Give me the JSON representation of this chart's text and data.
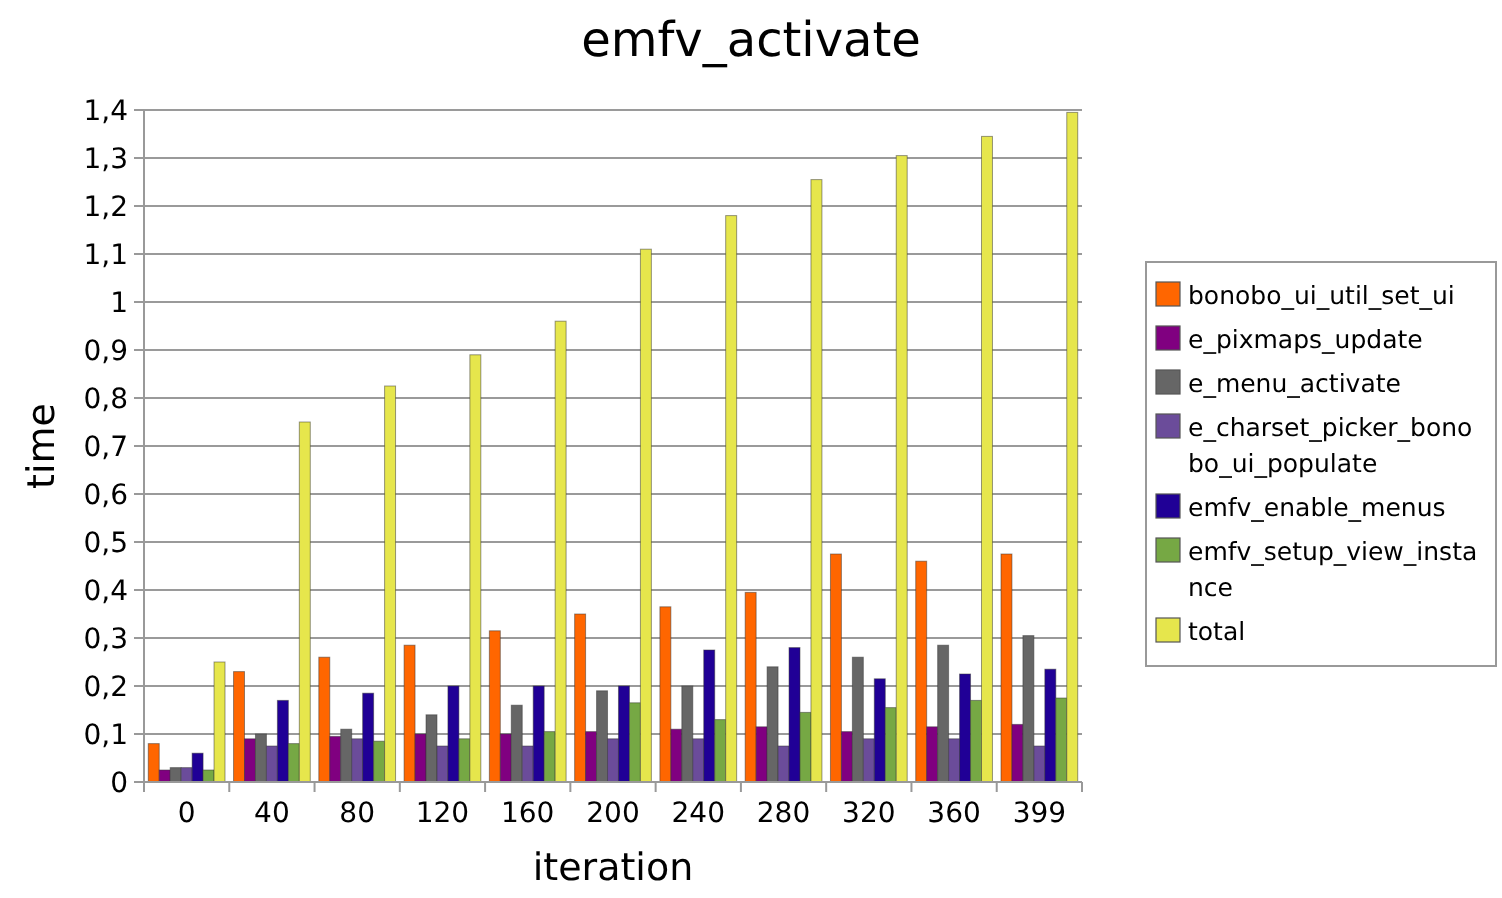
{
  "chart_data": {
    "type": "bar",
    "title": "emfv_activate",
    "xlabel": "iteration",
    "ylabel": "time",
    "categories": [
      "0",
      "40",
      "80",
      "120",
      "160",
      "200",
      "240",
      "280",
      "320",
      "360",
      "399"
    ],
    "series": [
      {
        "name": "bonobo_ui_util_set_ui",
        "color": "#ff6600",
        "values": [
          0.08,
          0.23,
          0.26,
          0.285,
          0.315,
          0.35,
          0.365,
          0.395,
          0.475,
          0.46,
          0.475
        ]
      },
      {
        "name": "e_pixmaps_update",
        "color": "#800080",
        "values": [
          0.025,
          0.09,
          0.095,
          0.1,
          0.1,
          0.105,
          0.11,
          0.115,
          0.105,
          0.115,
          0.12
        ]
      },
      {
        "name": "e_menu_activate",
        "color": "#666666",
        "values": [
          0.03,
          0.1,
          0.11,
          0.14,
          0.16,
          0.19,
          0.2,
          0.24,
          0.26,
          0.285,
          0.305
        ]
      },
      {
        "name": "e_charset_picker_bonobo_ui_populate",
        "color": "#6b4c9a",
        "values": [
          0.03,
          0.075,
          0.09,
          0.075,
          0.075,
          0.09,
          0.09,
          0.075,
          0.09,
          0.09,
          0.075
        ]
      },
      {
        "name": "emfv_enable_menus",
        "color": "#200096",
        "values": [
          0.06,
          0.17,
          0.185,
          0.2,
          0.2,
          0.2,
          0.275,
          0.28,
          0.215,
          0.225,
          0.235
        ]
      },
      {
        "name": "emfv_setup_view_instance",
        "color": "#76a844",
        "values": [
          0.025,
          0.08,
          0.085,
          0.09,
          0.105,
          0.165,
          0.13,
          0.145,
          0.155,
          0.17,
          0.175
        ]
      },
      {
        "name": "total",
        "color": "#e6e64c",
        "values": [
          0.25,
          0.75,
          0.825,
          0.89,
          0.96,
          1.11,
          1.18,
          1.255,
          1.305,
          1.345,
          1.395
        ]
      }
    ],
    "ylim": [
      0,
      1.4
    ],
    "yticks": [
      0,
      {
        "value": 0.1,
        "label": "0,1"
      },
      {
        "value": 0.2,
        "label": "0,2"
      },
      {
        "value": 0.3,
        "label": "0,3"
      },
      {
        "value": 0.4,
        "label": "0,4"
      },
      {
        "value": 0.5,
        "label": "0,5"
      },
      {
        "value": 0.6,
        "label": "0,6"
      },
      {
        "value": 0.7,
        "label": "0,7"
      },
      {
        "value": 0.8,
        "label": "0,8"
      },
      {
        "value": 0.9,
        "label": "0,9"
      },
      1,
      {
        "value": 1.1,
        "label": "1,1"
      },
      {
        "value": 1.2,
        "label": "1,2"
      },
      {
        "value": 1.3,
        "label": "1,3"
      },
      {
        "value": 1.4,
        "label": "1,4"
      }
    ],
    "grid": "y",
    "legend": "right"
  }
}
